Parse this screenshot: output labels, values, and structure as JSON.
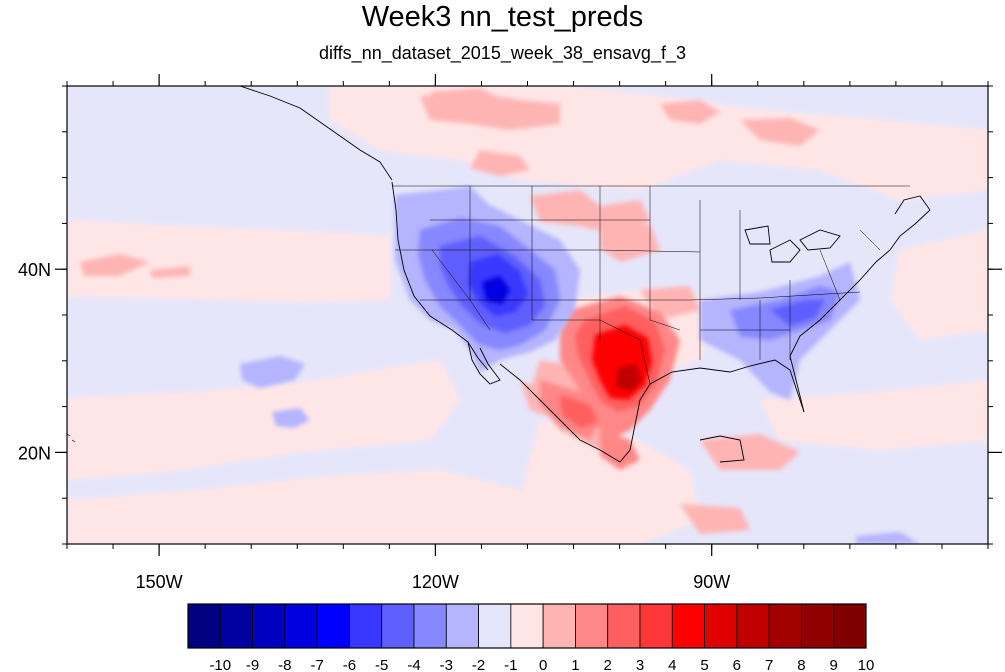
{
  "title": "Week3 nn_test_preds",
  "subtitle": "diffs_nn_dataset_2015_week_38_ensavg_f_3",
  "map": {
    "lon_range": [
      -160,
      -60
    ],
    "lat_range": [
      10,
      60
    ],
    "x_ticks": [
      {
        "lon": -150,
        "label": "150W"
      },
      {
        "lon": -120,
        "label": "120W"
      },
      {
        "lon": -90,
        "label": "90W"
      }
    ],
    "y_ticks": [
      {
        "lat": 20,
        "label": "20N"
      },
      {
        "lat": 40,
        "label": "40N"
      }
    ],
    "background_color": "#e6e6fa"
  },
  "colorbar": {
    "labels": [
      "-10",
      "-9",
      "-8",
      "-7",
      "-6",
      "-5",
      "-4",
      "-3",
      "-2",
      "-1",
      "0",
      "1",
      "2",
      "3",
      "4",
      "5",
      "6",
      "7",
      "8",
      "9",
      "10"
    ],
    "colors": [
      "#000080",
      "#0000a0",
      "#0000c0",
      "#0000e0",
      "#0000ff",
      "#3737ff",
      "#5f5fff",
      "#8787ff",
      "#b4b4ff",
      "#e6e6fa",
      "#ffe6e6",
      "#ffb4b4",
      "#ff8787",
      "#ff5f5f",
      "#ff3737",
      "#ff0000",
      "#e00000",
      "#c00000",
      "#a00000",
      "#900000",
      "#800000"
    ]
  }
}
